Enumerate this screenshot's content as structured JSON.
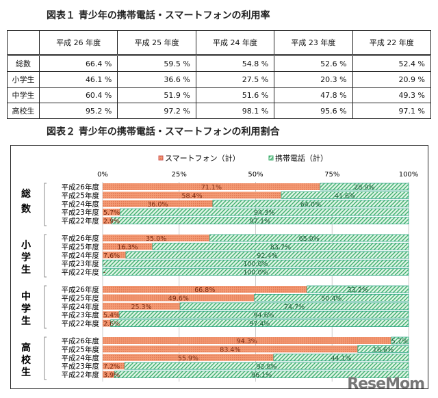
{
  "figure1": {
    "title": "図表１ 青少年の携帯電話・スマートフォンの利用率",
    "columns": [
      "平成 26 年度",
      "平成 25 年度",
      "平成 24 年度",
      "平成 23 年度",
      "平成 22 年度"
    ],
    "rows": [
      {
        "label": "総数",
        "values": [
          "66.4 %",
          "59.5 %",
          "54.8 %",
          "52.6 %",
          "52.4 %"
        ]
      },
      {
        "label": "小学生",
        "values": [
          "46.1 %",
          "36.6 %",
          "27.5 %",
          "20.3 %",
          "20.9 %"
        ]
      },
      {
        "label": "中学生",
        "values": [
          "60.4 %",
          "51.9 %",
          "51.6 %",
          "47.8 %",
          "49.3 %"
        ]
      },
      {
        "label": "高校生",
        "values": [
          "95.2 %",
          "97.2 %",
          "98.1 %",
          "95.6 %",
          "97.1 %"
        ]
      }
    ]
  },
  "figure2": {
    "title": "図表２ 青少年の携帯電話・スマートフォンの利用割合"
  },
  "watermark": "ReseMom",
  "chart_data": {
    "type": "bar",
    "stacked": true,
    "orientation": "horizontal",
    "xlim": [
      0,
      100
    ],
    "ticks": [
      "0%",
      "25%",
      "50%",
      "75%",
      "100%"
    ],
    "grid": true,
    "legend_placement": "top",
    "colors": {
      "スマートフォン（計）": "#f0906a",
      "携帯電話（計）": "#7fd6a0"
    },
    "series_names": [
      "スマートフォン（計）",
      "携帯電話（計）"
    ],
    "groups": [
      {
        "name": "総数",
        "categories": [
          "平成26年度",
          "平成25年度",
          "平成24年度",
          "平成23年度",
          "平成22年度"
        ],
        "smartphone": [
          71.1,
          58.4,
          36.0,
          5.7,
          2.9
        ],
        "mobile": [
          28.9,
          41.6,
          64.0,
          94.3,
          97.1
        ],
        "smartphone_labels": [
          "71.1%",
          "58.4%",
          "36.0%",
          "5.7%",
          "2.9%"
        ],
        "mobile_labels": [
          "28.9%",
          "41.6%",
          "64.0%",
          "94.3%",
          "97.1%"
        ]
      },
      {
        "name": "小学生",
        "categories": [
          "平成26年度",
          "平成25年度",
          "平成24年度",
          "平成23年度",
          "平成22年度"
        ],
        "smartphone": [
          35.0,
          16.3,
          7.6,
          0,
          0
        ],
        "mobile": [
          65.0,
          83.7,
          92.4,
          100.0,
          100.0
        ],
        "smartphone_labels": [
          "35.0%",
          "16.3%",
          "7.6%",
          "-",
          "-"
        ],
        "mobile_labels": [
          "65.0%",
          "83.7%",
          "92.4%",
          "100.0%",
          "100.0%"
        ]
      },
      {
        "name": "中学生",
        "categories": [
          "平成26年度",
          "平成25年度",
          "平成24年度",
          "平成23年度",
          "平成22年度"
        ],
        "smartphone": [
          66.8,
          49.6,
          25.3,
          5.4,
          2.6
        ],
        "mobile": [
          33.2,
          50.4,
          74.7,
          94.6,
          97.4
        ],
        "smartphone_labels": [
          "66.8%",
          "49.6%",
          "25.3%",
          "5.4%",
          "2.6%"
        ],
        "mobile_labels": [
          "33.2%",
          "50.4%",
          "74.7%",
          "94.6%",
          "97.4%"
        ]
      },
      {
        "name": "高校生",
        "categories": [
          "平成26年度",
          "平成25年度",
          "平成24年度",
          "平成23年度",
          "平成22年度"
        ],
        "smartphone": [
          94.3,
          83.4,
          55.9,
          7.2,
          3.9
        ],
        "mobile": [
          5.7,
          16.6,
          44.1,
          92.8,
          96.1
        ],
        "smartphone_labels": [
          "94.3%",
          "83.4%",
          "55.9%",
          "7.2%",
          "3.9%"
        ],
        "mobile_labels": [
          "5.7%",
          "16.6%",
          "44.1%",
          "92.8%",
          "96.1%"
        ]
      }
    ]
  }
}
